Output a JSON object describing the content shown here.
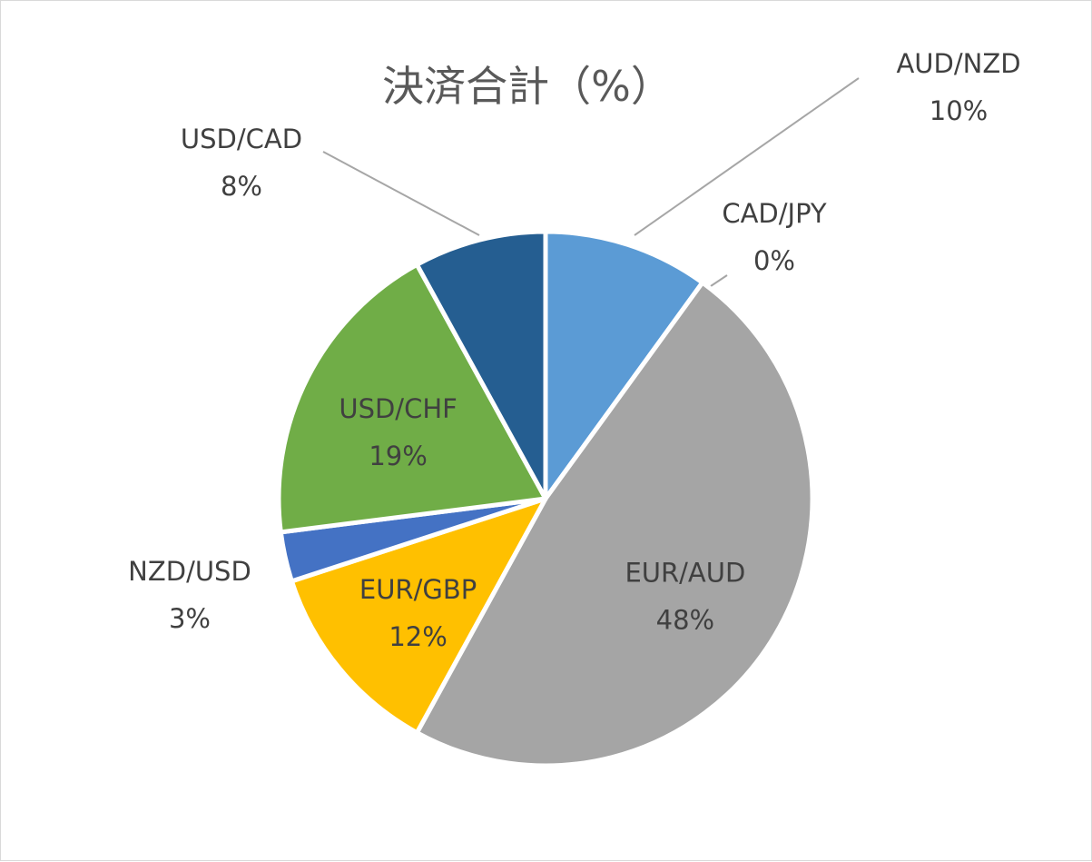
{
  "chart_data": {
    "type": "pie",
    "title": "決済合計（%）",
    "start_angle_deg": 0,
    "direction": "clockwise",
    "slices": [
      {
        "name": "AUD/NZD",
        "value": 10,
        "label": "10%",
        "color": "#5b9bd5",
        "label_position": "outside-top-right"
      },
      {
        "name": "CAD/JPY",
        "value": 0,
        "label": "0%",
        "color": "#ed7d31",
        "label_position": "outside-right"
      },
      {
        "name": "EUR/AUD",
        "value": 48,
        "label": "48%",
        "color": "#a5a5a5",
        "label_position": "inside"
      },
      {
        "name": "EUR/GBP",
        "value": 12,
        "label": "12%",
        "color": "#ffc000",
        "label_position": "inside"
      },
      {
        "name": "NZD/USD",
        "value": 3,
        "label": "3%",
        "color": "#4472c4",
        "label_position": "outside-left"
      },
      {
        "name": "USD/CHF",
        "value": 19,
        "label": "19%",
        "color": "#70ad47",
        "label_position": "inside"
      },
      {
        "name": "USD/CAD",
        "value": 8,
        "label": "8%",
        "color": "#255e91",
        "label_position": "outside-top-left"
      }
    ]
  }
}
